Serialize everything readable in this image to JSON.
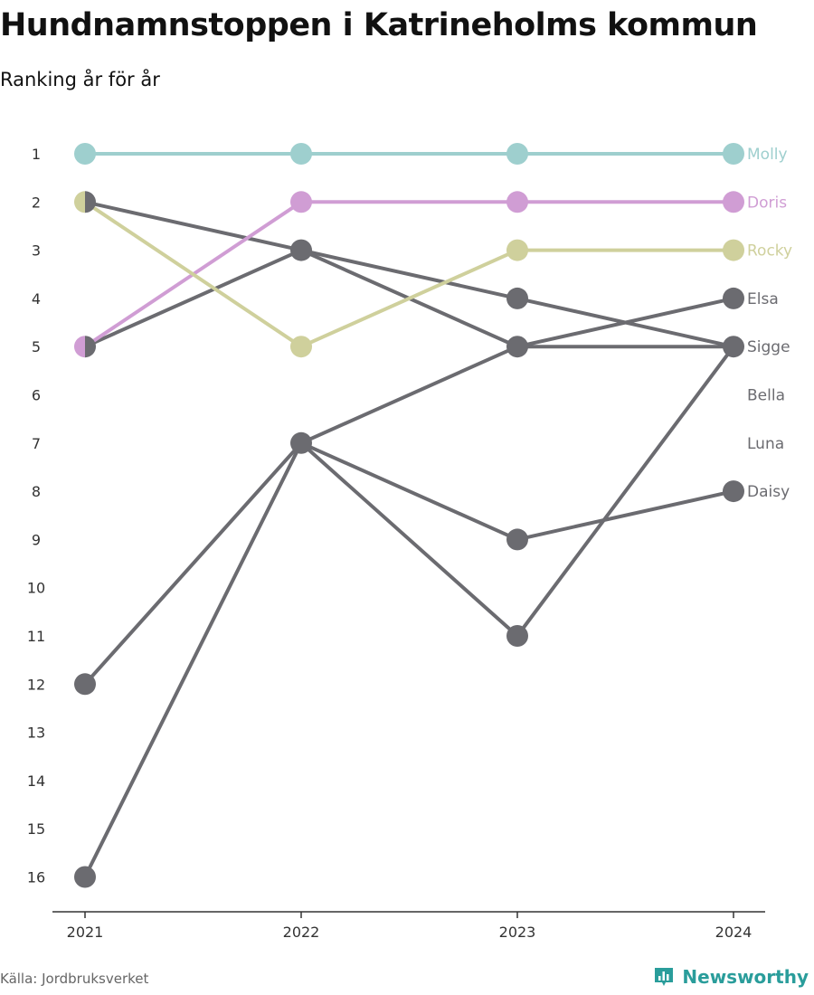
{
  "header": {
    "title": "Hundnamnstoppen i Katrineholms kommun",
    "subtitle": "Ranking år för år"
  },
  "footer": {
    "source": "Källa: Jordbruksverket",
    "brand_name": "Newsworthy",
    "brand_icon": "bar-chart-logo-icon"
  },
  "colors": {
    "Molly": "#9ecfce",
    "Doris": "#d09dd4",
    "Rocky": "#cfd09c",
    "default": "#6b6b70",
    "axis": "#333333",
    "tick_text": "#333333"
  },
  "chart_data": {
    "type": "line",
    "chart_kind": "bump",
    "x": [
      "2021",
      "2022",
      "2023",
      "2024"
    ],
    "y_axis": {
      "reversed": true,
      "ticks": [
        1,
        2,
        3,
        4,
        5,
        6,
        7,
        8,
        9,
        10,
        11,
        12,
        13,
        14,
        15,
        16
      ],
      "range": [
        1,
        16
      ]
    },
    "grid": false,
    "legend": "end-labels",
    "series": [
      {
        "name": "Molly",
        "values": [
          1,
          1,
          1,
          1
        ]
      },
      {
        "name": "Doris",
        "values": [
          5,
          2,
          2,
          2
        ]
      },
      {
        "name": "Rocky",
        "values": [
          2,
          5,
          3,
          3
        ]
      },
      {
        "name": "Elsa",
        "values": [
          2,
          3,
          5,
          4
        ]
      },
      {
        "name": "Sigge",
        "values": [
          5,
          3,
          4,
          5
        ]
      },
      {
        "name": "Bella",
        "values": [
          12,
          7,
          5,
          5
        ]
      },
      {
        "name": "Luna",
        "values": [
          16,
          7,
          11,
          5
        ]
      },
      {
        "name": "Daisy",
        "values": [
          null,
          7,
          9,
          8
        ]
      }
    ]
  }
}
